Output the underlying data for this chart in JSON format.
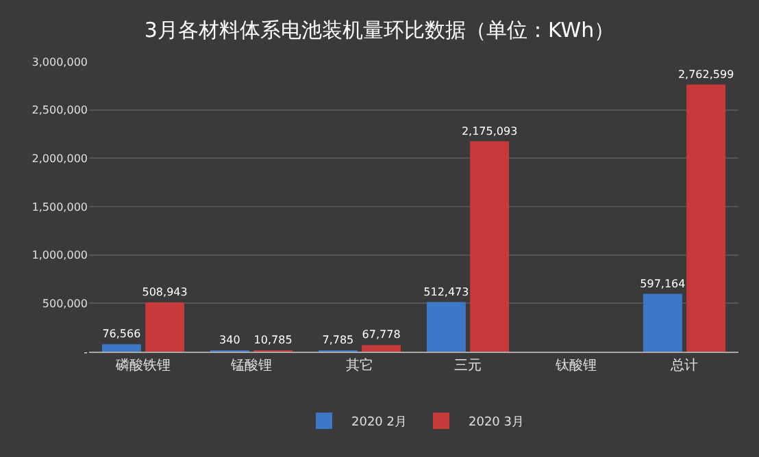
{
  "chart_data": {
    "type": "bar",
    "title": "3月各材料体系电池装机量环比数据（单位：KWh）",
    "categories": [
      "磷酸铁锂",
      "锰酸锂",
      "其它",
      "三元",
      "钛酸锂",
      "总计"
    ],
    "series": [
      {
        "name": "2020 2月",
        "color": "#3d78c8",
        "values": [
          76566,
          340,
          7785,
          512473,
          null,
          597164
        ],
        "value_labels": [
          "76,566",
          "340",
          "7,785",
          "512,473",
          null,
          "597,164"
        ]
      },
      {
        "name": "2020 3月",
        "color": "#c83a3a",
        "values": [
          508943,
          10785,
          67778,
          2175093,
          null,
          2762599
        ],
        "value_labels": [
          "508,943",
          "10,785",
          "67,778",
          "2,175,093",
          null,
          "2,762,599"
        ]
      }
    ],
    "ylim": [
      0,
      3000000
    ],
    "yticks": [
      {
        "value": 0,
        "label": "-"
      },
      {
        "value": 500000,
        "label": "500,000"
      },
      {
        "value": 1000000,
        "label": "1,000,000"
      },
      {
        "value": 1500000,
        "label": "1,500,000"
      },
      {
        "value": 2000000,
        "label": "2,000,000"
      },
      {
        "value": 2500000,
        "label": "2,500,000"
      },
      {
        "value": 3000000,
        "label": "3,000,000"
      }
    ],
    "grid": "y",
    "legend": "bottom"
  }
}
